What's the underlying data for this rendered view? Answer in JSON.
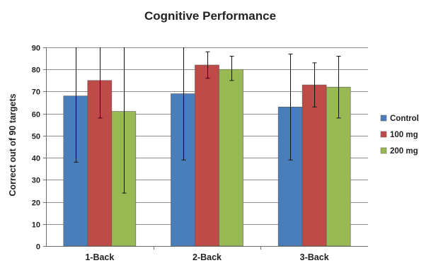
{
  "chart_data": {
    "type": "bar",
    "title": "Cognitive Performance",
    "xlabel": "",
    "ylabel": "Correct out of 90 targets",
    "ylim": [
      0,
      90
    ],
    "yticks": [
      0,
      10,
      20,
      30,
      40,
      50,
      60,
      70,
      80,
      90
    ],
    "categories": [
      "1-Back",
      "2-Back",
      "3-Back"
    ],
    "series": [
      {
        "name": "Control",
        "color": "#4a7ebb",
        "values": [
          68,
          69,
          63
        ],
        "error_low": [
          38,
          39,
          39
        ],
        "error_high": [
          90,
          90,
          87
        ]
      },
      {
        "name": "100 mg",
        "color": "#be4b48",
        "values": [
          75,
          82,
          73
        ],
        "error_low": [
          58,
          76,
          63
        ],
        "error_high": [
          90,
          88,
          83
        ]
      },
      {
        "name": "200 mg",
        "color": "#98b954",
        "values": [
          61,
          80,
          72
        ],
        "error_low": [
          24,
          75,
          58
        ],
        "error_high": [
          90,
          86,
          86
        ]
      }
    ],
    "grid": true,
    "legend_position": "right"
  }
}
